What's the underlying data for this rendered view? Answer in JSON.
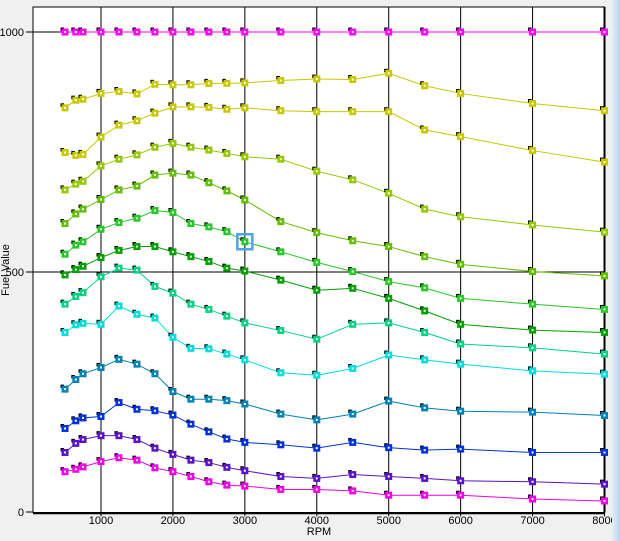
{
  "window": {
    "background_color": "#f0f0f0",
    "plot_background_color": "#ffffff",
    "edge_strip_color": "#b7d2ee"
  },
  "chart_data": {
    "type": "line",
    "title": "",
    "xlabel": "RPM",
    "ylabel": "Fuel Value",
    "grid": "vertical black gridlines at each x tick; horizontal black lines at y=500 and y=1000",
    "legend_position": "none",
    "xlim": [
      50,
      8000
    ],
    "ylim": [
      0,
      1052
    ],
    "x_axis": {
      "label": "RPM",
      "ticks": [
        1000,
        2000,
        3000,
        4000,
        5000,
        6000,
        7000,
        8000
      ]
    },
    "y_axis": {
      "label": "Fuel Value",
      "ticks": [
        0,
        500,
        1000
      ]
    },
    "x": [
      500,
      650,
      750,
      1000,
      1250,
      1500,
      1750,
      2000,
      2250,
      2500,
      2750,
      3000,
      3500,
      4000,
      4500,
      5000,
      5500,
      6000,
      7000,
      8000
    ],
    "series": [
      {
        "name": "Row 1",
        "color": "#ff00ff",
        "values": [
          1000,
          1000,
          1000,
          1000,
          1000,
          1000,
          1000,
          1000,
          1000,
          1000,
          1000,
          1000,
          1000,
          1000,
          1000,
          1000,
          1000,
          1000,
          1000,
          1000
        ]
      },
      {
        "name": "Row 2",
        "color": "#c8c800",
        "values": [
          842,
          858,
          860,
          872,
          876,
          871,
          891,
          890,
          890,
          893,
          893,
          894,
          899,
          902,
          901,
          914,
          888,
          872,
          851,
          836
        ]
      },
      {
        "name": "Row 3",
        "color": "#c8c800",
        "values": [
          749,
          743,
          745,
          781,
          806,
          815,
          831,
          844,
          844,
          843,
          839,
          842,
          836,
          834,
          834,
          834,
          796,
          782,
          753,
          729
        ]
      },
      {
        "name": "Row 4",
        "color": "#96c800",
        "values": [
          671,
          683,
          689,
          721,
          735,
          744,
          760,
          768,
          760,
          754,
          747,
          740,
          735,
          710,
          692,
          664,
          631,
          615,
          598,
          583
        ]
      },
      {
        "name": "Row 5",
        "color": "#64be00",
        "values": [
          601,
          621,
          631,
          651,
          671,
          679,
          702,
          706,
          702,
          686,
          669,
          650,
          605,
          582,
          565,
          553,
          532,
          516,
          501,
          492
        ]
      },
      {
        "name": "Row 6",
        "color": "#28c828",
        "values": [
          537,
          556,
          563,
          589,
          603,
          612,
          628,
          624,
          601,
          594,
          584,
          563,
          542,
          520,
          501,
          480,
          467,
          445,
          433,
          422
        ]
      },
      {
        "name": "Row 7",
        "color": "#00a000",
        "values": [
          494,
          505,
          512,
          530,
          545,
          553,
          553,
          542,
          532,
          522,
          508,
          502,
          483,
          462,
          466,
          445,
          419,
          391,
          379,
          374
        ]
      },
      {
        "name": "Row 8",
        "color": "#00d284",
        "values": [
          433,
          449,
          457,
          490,
          508,
          504,
          470,
          456,
          433,
          422,
          408,
          394,
          378,
          360,
          391,
          394,
          374,
          350,
          342,
          329
        ]
      },
      {
        "name": "Row 9",
        "color": "#00dcdc",
        "values": [
          374,
          390,
          393,
          391,
          429,
          412,
          404,
          364,
          341,
          340,
          329,
          317,
          290,
          285,
          299,
          327,
          317,
          308,
          294,
          287
        ]
      },
      {
        "name": "Row 10",
        "color": "#0082b4",
        "values": [
          256,
          276,
          288,
          301,
          318,
          308,
          288,
          251,
          235,
          235,
          232,
          225,
          204,
          192,
          204,
          231,
          217,
          210,
          208,
          201
        ]
      },
      {
        "name": "Row 11",
        "color": "#0032dc",
        "values": [
          174,
          190,
          196,
          199,
          228,
          214,
          211,
          202,
          183,
          167,
          152,
          145,
          140,
          133,
          145,
          134,
          129,
          131,
          124,
          124
        ]
      },
      {
        "name": "Row 12",
        "color": "#5a14c8",
        "values": [
          124,
          143,
          151,
          159,
          159,
          151,
          133,
          120,
          108,
          103,
          93,
          86,
          74,
          70,
          78,
          74,
          70,
          65,
          63,
          58
        ]
      },
      {
        "name": "Row 13",
        "color": "#f000e6",
        "values": [
          84,
          89,
          94,
          105,
          113,
          108,
          92,
          84,
          74,
          63,
          56,
          54,
          47,
          47,
          44,
          35,
          35,
          35,
          27,
          23
        ]
      }
    ],
    "highlight": {
      "series_index": 5,
      "x": 3000,
      "value": 563,
      "box_color": "#4fa3e8",
      "meaning": "selected table cell"
    }
  }
}
